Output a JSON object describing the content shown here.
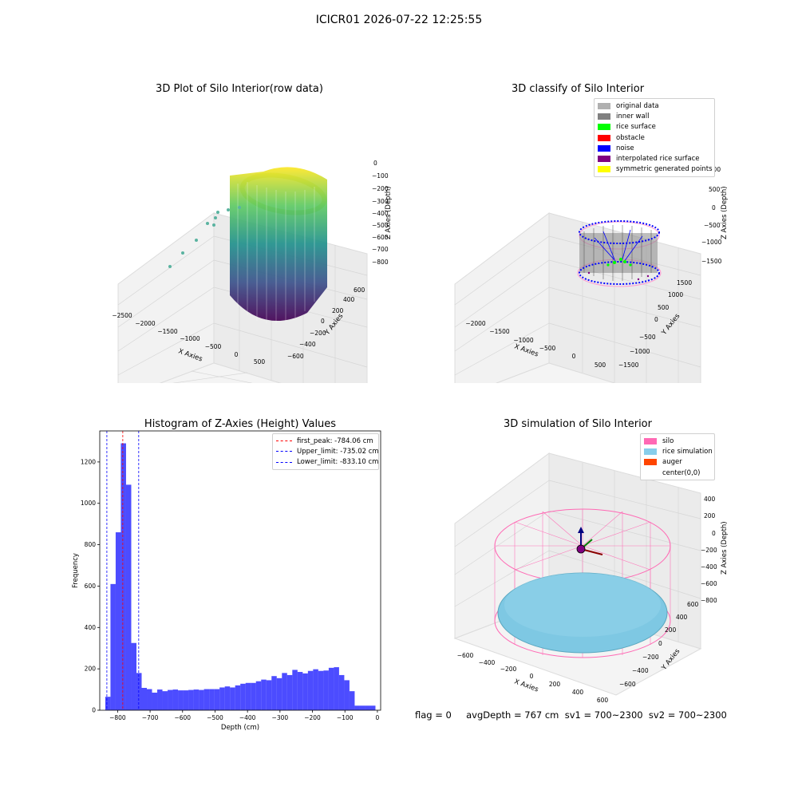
{
  "suptitle": "ICICR01 2026-07-22 12:25:55",
  "panel_raw": {
    "title": "3D Plot of Silo Interior(row data)",
    "x_label": "X Axies",
    "y_label": "Y Axies",
    "z_label": "Z Axies (Depth)",
    "x_ticks": [
      "−2500",
      "−2000",
      "−1500",
      "−1000",
      "−500",
      "0",
      "500"
    ],
    "y_ticks": [
      "−600",
      "−400",
      "−200",
      "0",
      "200",
      "400",
      "600"
    ],
    "z_ticks": [
      "0",
      "−100",
      "−200",
      "−300",
      "−400",
      "−500",
      "−600",
      "−700",
      "−800"
    ],
    "colormap": "viridis"
  },
  "panel_classify": {
    "title": "3D classify of Silo Interior",
    "x_label": "X Axies",
    "y_label": "Y Axies",
    "z_label": "Z Axies (Depth)",
    "x_ticks": [
      "−2000",
      "−1500",
      "−1000",
      "−500",
      "0",
      "500"
    ],
    "y_ticks": [
      "−1500",
      "−1000",
      "−500",
      "0",
      "500",
      "1000",
      "1500"
    ],
    "z_ticks": [
      "1000",
      "500",
      "0",
      "−500",
      "−1000",
      "−1500"
    ],
    "legend": [
      {
        "label": "original data",
        "color": "#b0b0b0"
      },
      {
        "label": "inner wall",
        "color": "#808080"
      },
      {
        "label": "rice surface",
        "color": "#00ff00"
      },
      {
        "label": "obstacle",
        "color": "#ff0000"
      },
      {
        "label": "noise",
        "color": "#0000ff"
      },
      {
        "label": "interpolated rice surface",
        "color": "#800080"
      },
      {
        "label": "symmetric generated points",
        "color": "#ffff00"
      }
    ]
  },
  "panel_sim": {
    "title": "3D simulation of Silo Interior",
    "x_label": "X Axies",
    "y_label": "Y Axies",
    "z_label": "Z Axies (Depth)",
    "x_ticks": [
      "−600",
      "−400",
      "−200",
      "0",
      "200",
      "400",
      "600"
    ],
    "y_ticks": [
      "−600",
      "−400",
      "−200",
      "0",
      "200",
      "400",
      "600"
    ],
    "z_ticks": [
      "400",
      "200",
      "0",
      "−200",
      "−400",
      "−600",
      "−800"
    ],
    "legend": [
      {
        "label": "silo",
        "color": "#ff69b4"
      },
      {
        "label": "rice simulation",
        "color": "#87ceeb"
      },
      {
        "label": "auger",
        "color": "#ff4500"
      },
      {
        "label": "center(0,0)",
        "color": "#ffffff"
      }
    ]
  },
  "footer": "flag = 0     avgDepth = 767 cm  sv1 = 700~2300  sv2 = 700~2300",
  "chart_data": [
    {
      "type": "bar",
      "title": "Histogram of Z-Axies (Height) Values",
      "xlabel": "Depth (cm)",
      "ylabel": "Frequency",
      "xlim": [
        -855,
        10
      ],
      "ylim": [
        0,
        1350
      ],
      "xticks": [
        -800,
        -700,
        -600,
        -500,
        -400,
        -300,
        -200,
        -100,
        0
      ],
      "yticks": [
        0,
        200,
        400,
        600,
        800,
        1000,
        1200
      ],
      "bin_width": 16,
      "bins_start": [
        -838,
        -822,
        -806,
        -790,
        -774,
        -758,
        -742,
        -726,
        -710,
        -694,
        -678,
        -662,
        -646,
        -630,
        -614,
        -598,
        -582,
        -566,
        -550,
        -534,
        -518,
        -502,
        -486,
        -470,
        -454,
        -438,
        -422,
        -406,
        -390,
        -374,
        -358,
        -342,
        -326,
        -310,
        -294,
        -278,
        -262,
        -246,
        -230,
        -214,
        -198,
        -182,
        -166,
        -150,
        -134,
        -118,
        -102,
        -86,
        -70,
        -54,
        -38,
        -22
      ],
      "values": [
        65,
        610,
        860,
        1290,
        1090,
        325,
        180,
        108,
        102,
        85,
        100,
        92,
        98,
        100,
        96,
        96,
        98,
        100,
        98,
        102,
        102,
        102,
        110,
        115,
        110,
        120,
        128,
        132,
        132,
        140,
        148,
        145,
        165,
        155,
        180,
        170,
        195,
        185,
        178,
        190,
        198,
        190,
        192,
        205,
        208,
        170,
        145,
        92,
        22,
        22,
        22,
        22
      ],
      "color": "#0000ff",
      "vlines": [
        {
          "label": "first_peak: -784.06 cm",
          "x": -784.06,
          "color": "#ff0000"
        },
        {
          "label": "Upper_limit: -735.02 cm",
          "x": -735.02,
          "color": "#0000ff"
        },
        {
          "label": "Lower_limit: -833.10 cm",
          "x": -833.1,
          "color": "#0000ff"
        }
      ]
    }
  ]
}
